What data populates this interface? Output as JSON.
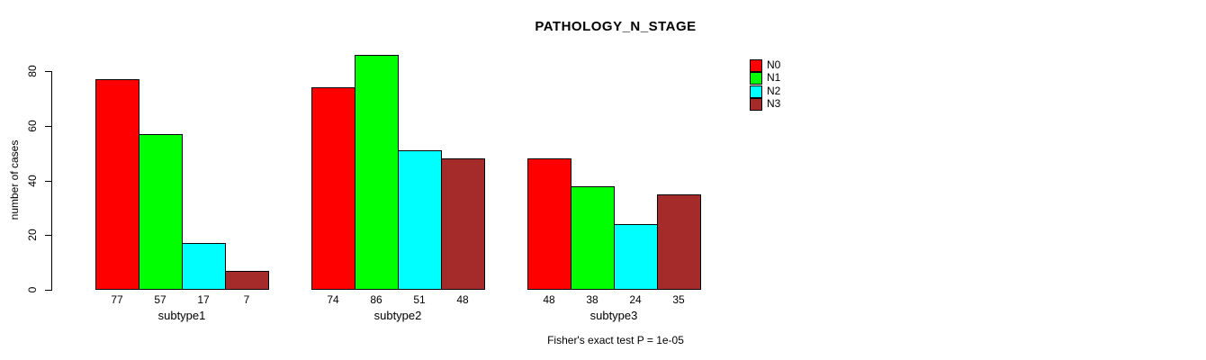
{
  "chart_data": {
    "type": "bar",
    "title": "PATHOLOGY_N_STAGE",
    "ylabel": "number of cases",
    "xlabel": "",
    "categories": [
      "subtype1",
      "subtype2",
      "subtype3"
    ],
    "series": [
      {
        "name": "N0",
        "color": "#FF0000",
        "values": [
          77,
          74,
          48
        ]
      },
      {
        "name": "N1",
        "color": "#00FF00",
        "values": [
          57,
          86,
          38
        ]
      },
      {
        "name": "N2",
        "color": "#00FFFF",
        "values": [
          17,
          51,
          24
        ]
      },
      {
        "name": "N3",
        "color": "#A52A2A",
        "values": [
          7,
          48,
          35
        ]
      }
    ],
    "yticks": [
      0,
      20,
      40,
      60,
      80
    ],
    "ylim": [
      0,
      86
    ],
    "grid": false,
    "bar_value_labels_shown": true,
    "legend_position": "top-right",
    "annotation": "Fisher's exact test P = 1e-05"
  }
}
